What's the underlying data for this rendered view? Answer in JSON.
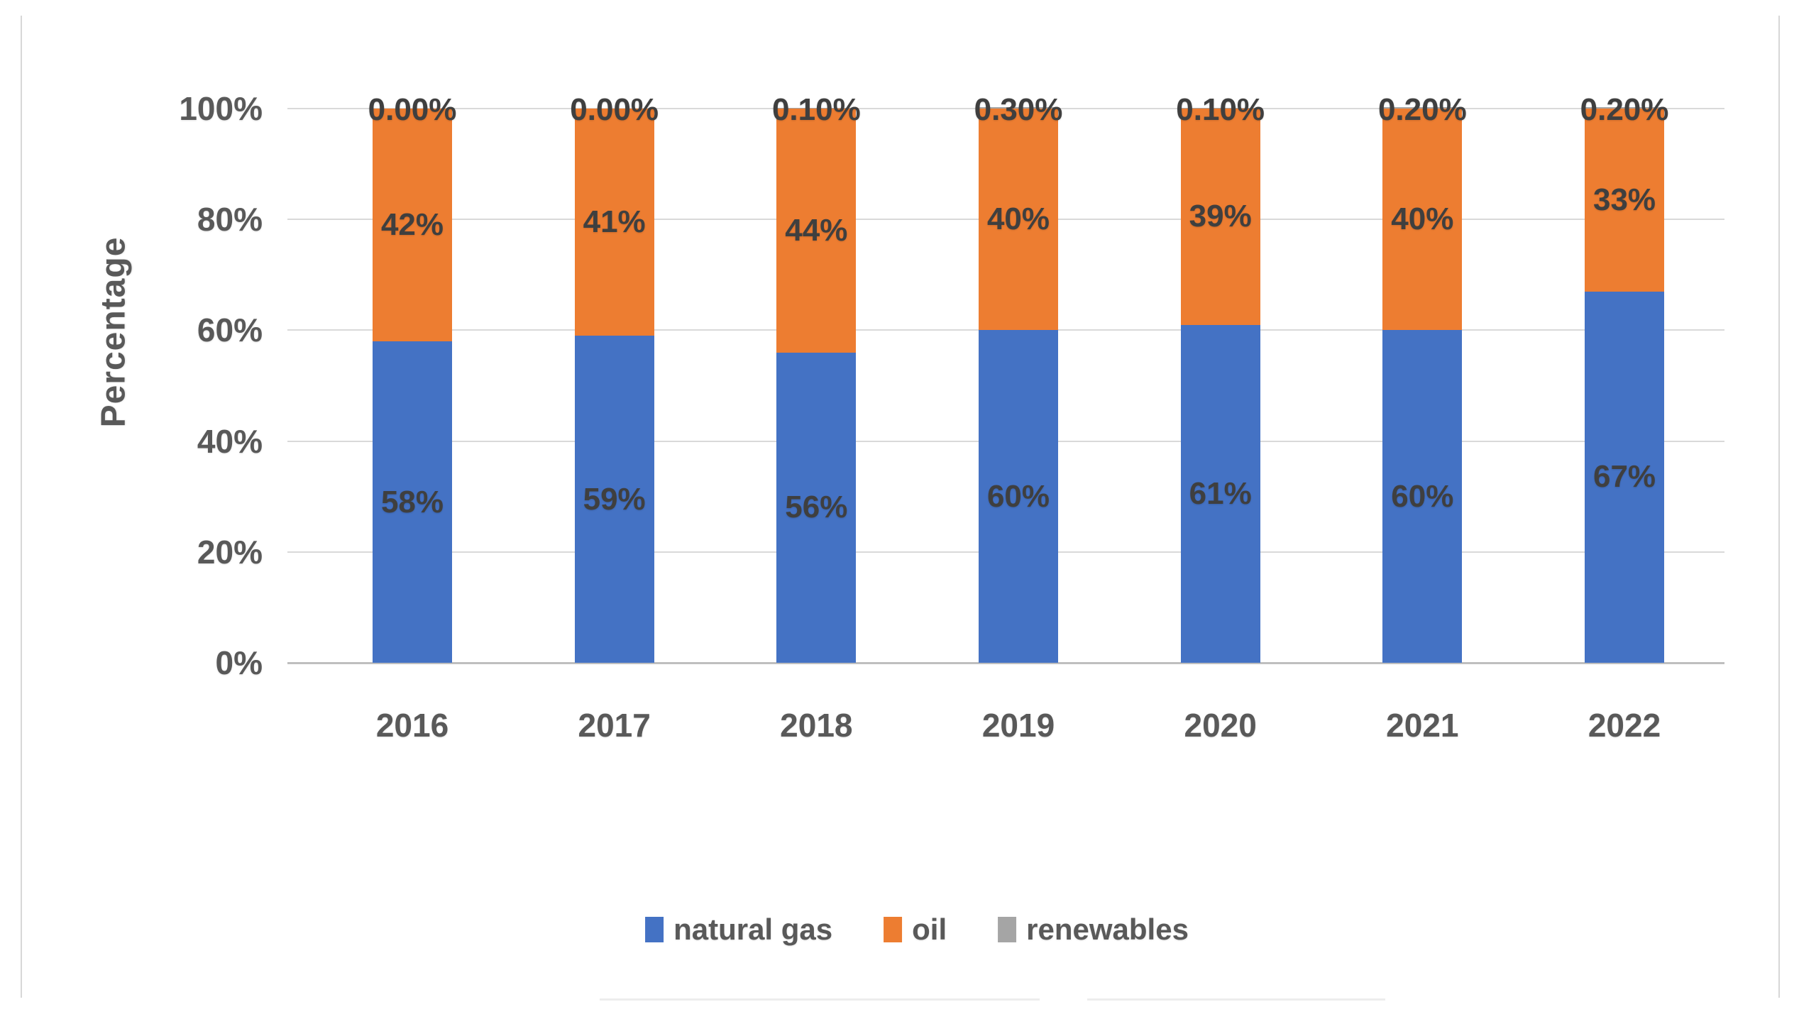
{
  "chart_data": {
    "type": "bar",
    "stacked": true,
    "title": "",
    "xlabel": "",
    "ylabel": "Percentage",
    "categories": [
      "2016",
      "2017",
      "2018",
      "2019",
      "2020",
      "2021",
      "2022"
    ],
    "series": [
      {
        "name": "natural gas",
        "color": "#4472C4",
        "values": [
          58,
          59,
          56,
          60,
          61,
          60,
          67
        ],
        "labels": [
          "58%",
          "59%",
          "56%",
          "60%",
          "61%",
          "60%",
          "67%"
        ]
      },
      {
        "name": "oil",
        "color": "#ED7D31",
        "values": [
          42,
          41,
          44,
          40,
          39,
          40,
          33
        ],
        "labels": [
          "42%",
          "41%",
          "44%",
          "40%",
          "39%",
          "40%",
          "33%"
        ]
      },
      {
        "name": "renewables",
        "color": "#A5A5A5",
        "values": [
          0.0,
          0.0,
          0.1,
          0.3,
          0.1,
          0.2,
          0.2
        ],
        "labels": [
          "0.00%",
          "0.00%",
          "0.10%",
          "0.30%",
          "0.10%",
          "0.20%",
          "0.20%"
        ]
      }
    ],
    "y_ticks": [
      "0%",
      "20%",
      "40%",
      "60%",
      "80%",
      "100%"
    ],
    "ylim": [
      0,
      100
    ],
    "grid": true,
    "legend_position": "bottom"
  },
  "colors": {
    "natural_gas": "#4472C4",
    "oil": "#ED7D31",
    "renewables": "#A5A5A5",
    "gridline": "#D9D9D9",
    "axis_line": "#BFBFBF",
    "label_text": "#3F3F3F",
    "axis_text": "#595959"
  }
}
